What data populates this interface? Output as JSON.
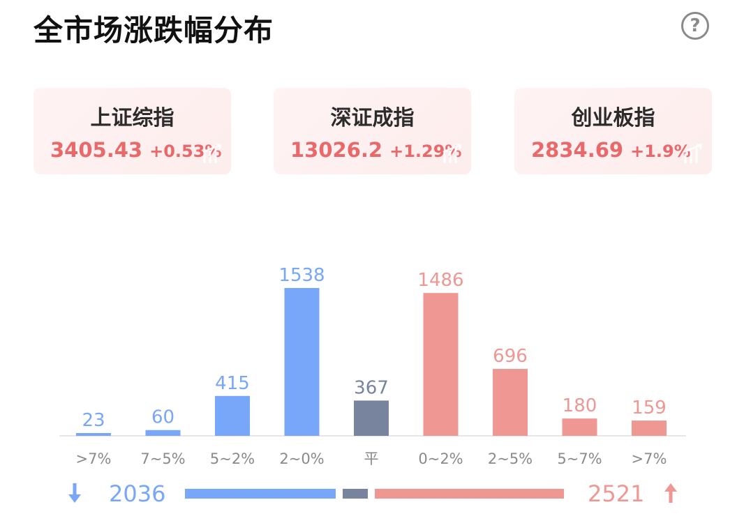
{
  "title": "全市场涨跌幅分布",
  "help_icon": "?",
  "indices": [
    {
      "name": "上证综指",
      "value": "3405.43",
      "change": "+0.53%"
    },
    {
      "name": "深证成指",
      "value": "13026.2",
      "change": "+1.29%"
    },
    {
      "name": "创业板指",
      "value": "2834.69",
      "change": "+1.9%"
    }
  ],
  "colors": {
    "down": "#78a6f8",
    "flat": "#78839e",
    "up": "#ee9793",
    "up_text": "#e9696b"
  },
  "chart_data": {
    "type": "bar",
    "categories": [
      ">7%",
      "7~5%",
      "5~2%",
      "2~0%",
      "平",
      "0~2%",
      "2~5%",
      "5~7%",
      ">7%"
    ],
    "values": [
      23,
      60,
      415,
      1538,
      367,
      1486,
      696,
      180,
      159
    ],
    "groups": [
      "down",
      "down",
      "down",
      "down",
      "flat",
      "up",
      "up",
      "up",
      "up"
    ],
    "title": "",
    "xlabel": "",
    "ylabel": "",
    "ylim": [
      0,
      1538
    ],
    "grid": false
  },
  "summary": {
    "down_total": "2036",
    "up_total": "2521",
    "flat_total": 367
  }
}
